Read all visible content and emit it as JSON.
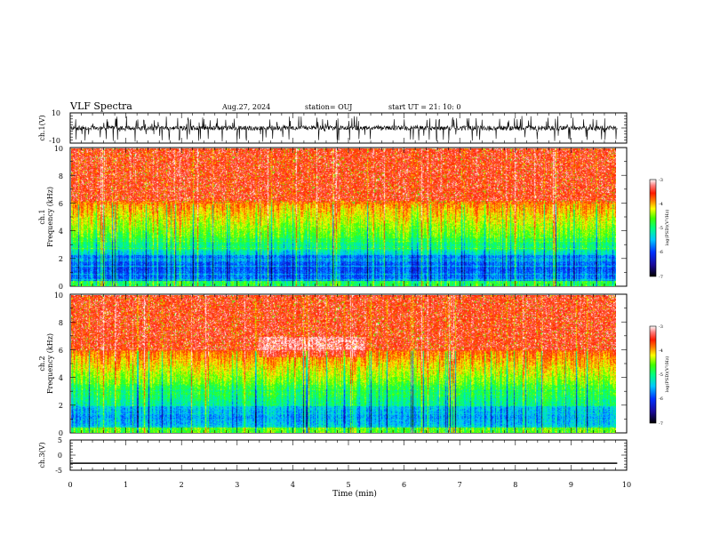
{
  "header": {
    "title": "VLF Spectra",
    "date": "Aug.27, 2024",
    "station": "station= OUJ",
    "start": "start  UT  =   21: 10: 0"
  },
  "chart_data": [
    {
      "type": "line",
      "name": "ch1-waveform",
      "ylabel": "ch.1(V)",
      "ylim": [
        -10,
        10
      ],
      "yticks": [
        "10",
        "-10"
      ],
      "description_values": {
        "baseline": 0,
        "noise_amplitude": 5
      }
    },
    {
      "type": "heatmap",
      "name": "ch1-spectrogram",
      "ylabel_line1": "ch.1",
      "ylabel_line2": "Frequency  (kHz)",
      "ylim": [
        0,
        10
      ],
      "yticks": [
        "0",
        "2",
        "4",
        "6",
        "8",
        "10"
      ],
      "colorbar": {
        "label": "log(PSD)(V²/Hz)",
        "range": [
          -7,
          -3
        ],
        "ticks": [
          "-3",
          "-4",
          "-5",
          "-6",
          "-7"
        ]
      }
    },
    {
      "type": "heatmap",
      "name": "ch2-spectrogram",
      "ylabel_line1": "ch.2",
      "ylabel_line2": "Frequency  (kHz)",
      "ylim": [
        0,
        10
      ],
      "yticks": [
        "0",
        "2",
        "4",
        "6",
        "8",
        "10"
      ],
      "colorbar": {
        "label": "log(PSD)(V²/Hz)",
        "range": [
          -7,
          -3
        ],
        "ticks": [
          "-3",
          "-4",
          "-5",
          "-6",
          "-7"
        ]
      }
    },
    {
      "type": "line",
      "name": "ch3-signal",
      "ylabel": "ch.3(V)",
      "ylim": [
        -5,
        5
      ],
      "yticks": [
        "5",
        "0",
        "-5"
      ],
      "series": [
        {
          "x": [
            0,
            9.83
          ],
          "y": [
            -2.7,
            -2.7
          ]
        }
      ]
    }
  ],
  "xaxis": {
    "label": "Time  (min)",
    "range": [
      0,
      10
    ],
    "data_end": 9.83,
    "ticks": [
      "0",
      "1",
      "2",
      "3",
      "4",
      "5",
      "6",
      "7",
      "8",
      "9",
      "10"
    ]
  },
  "colors": {
    "line": "#000000",
    "frame": "#000000"
  }
}
